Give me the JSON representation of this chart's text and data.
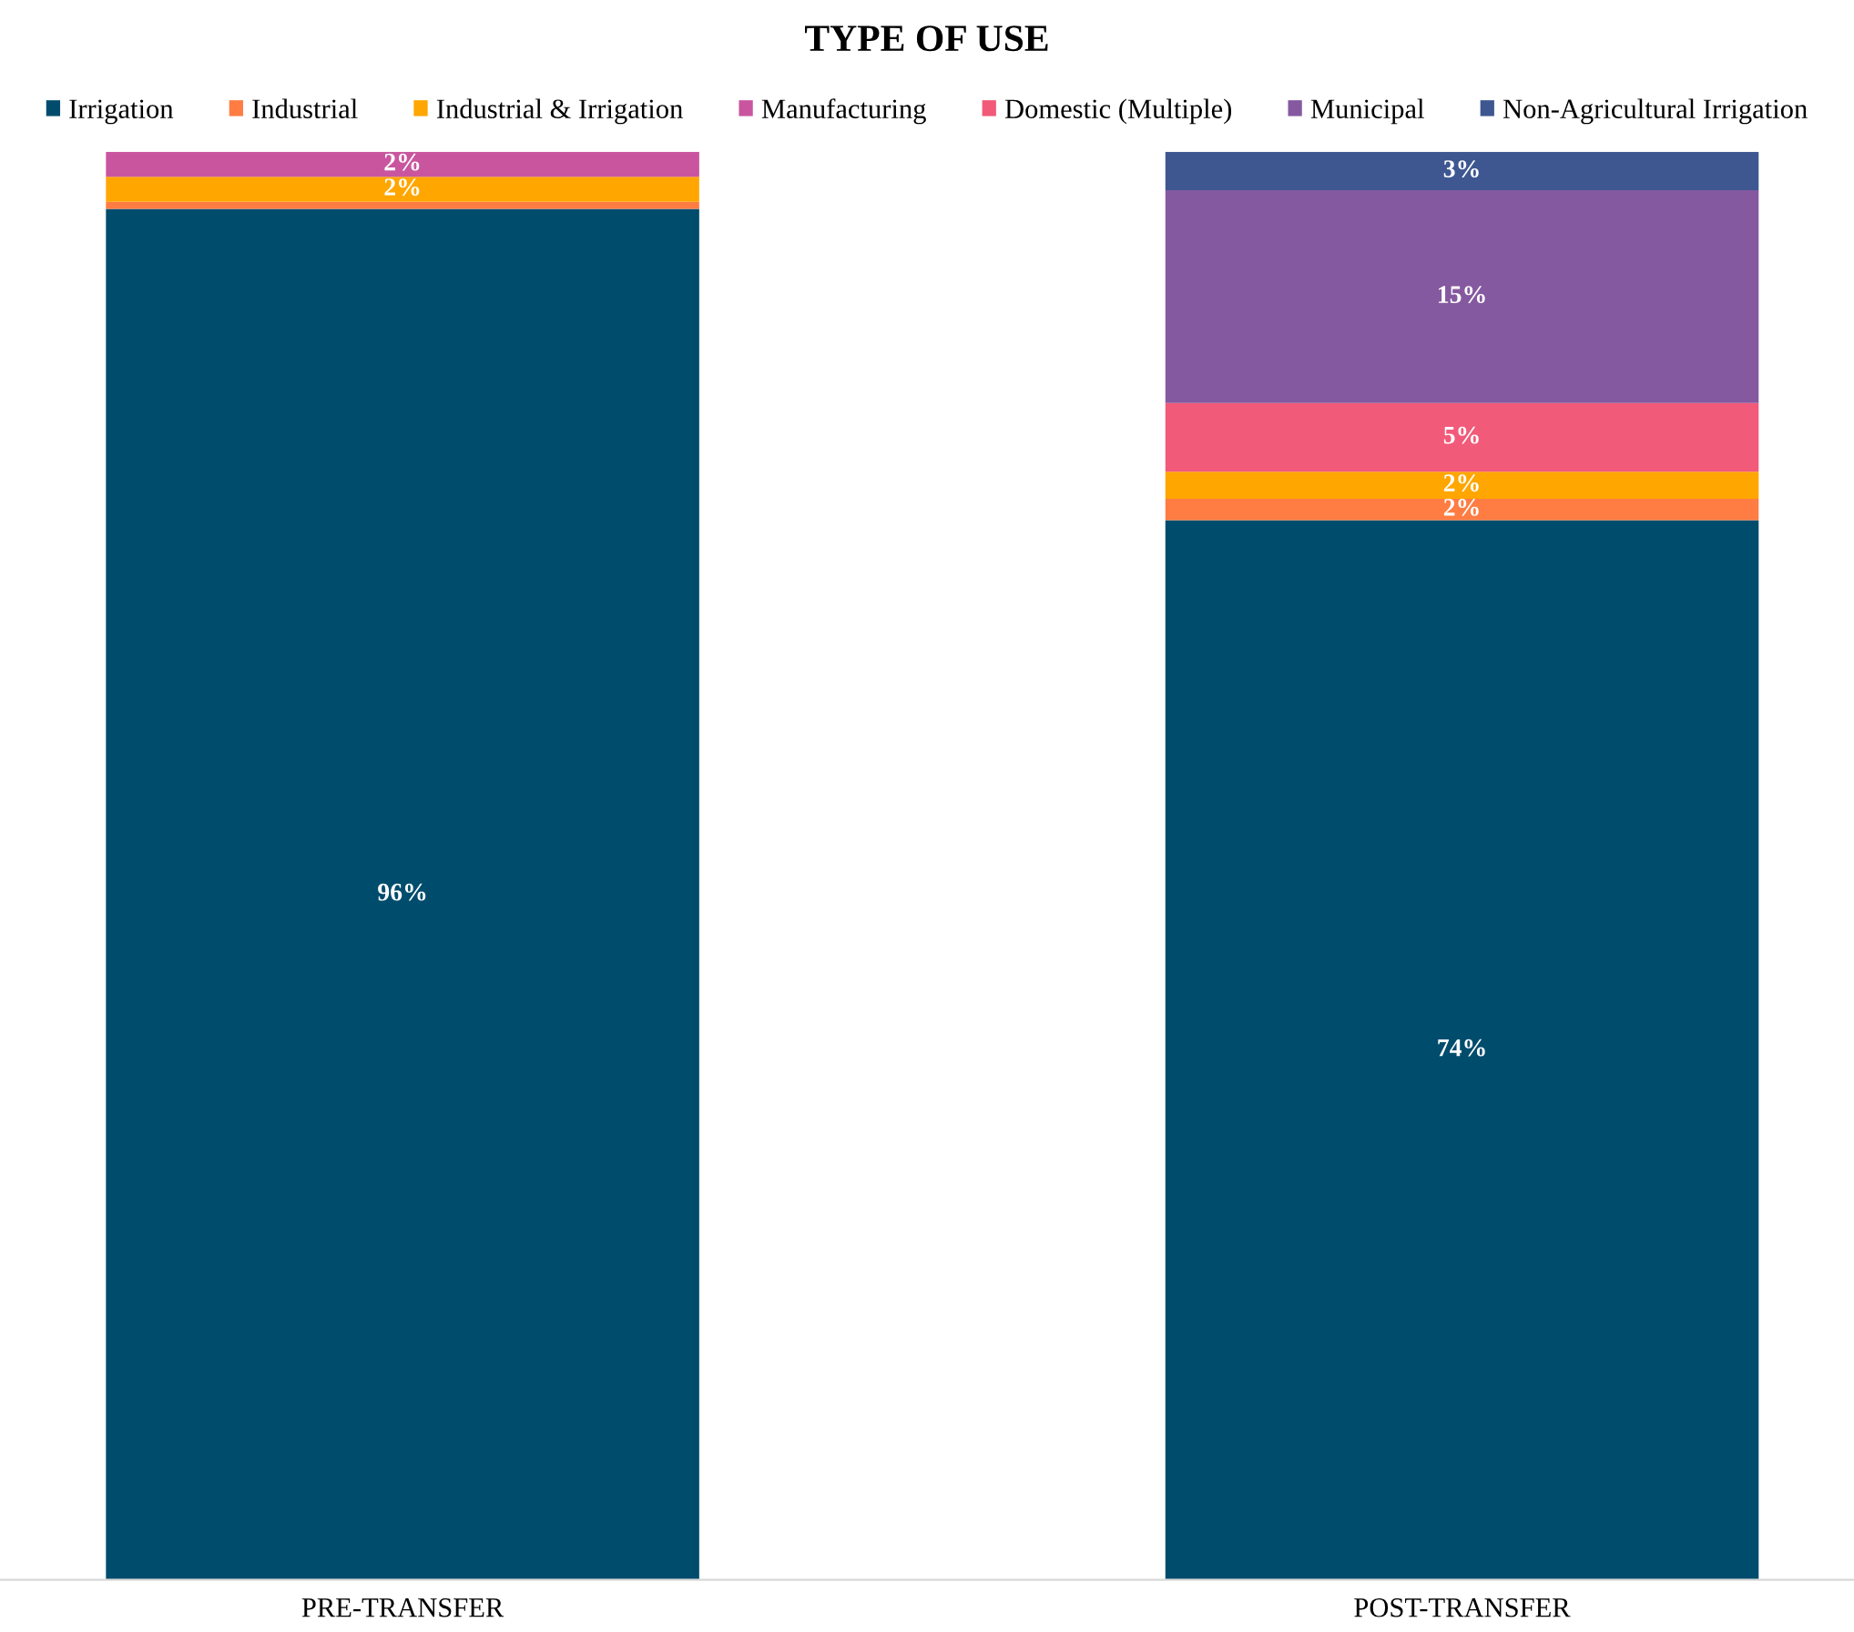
{
  "chart_data": {
    "type": "bar",
    "title": "TYPE OF USE",
    "stacked": true,
    "categories": [
      "PRE-TRANSFER",
      "POST-TRANSFER"
    ],
    "ylim": [
      0,
      100
    ],
    "tick_labels": "x",
    "grid": false,
    "legend": "top",
    "series": [
      {
        "name": "Irrigation",
        "color": "#004c6d",
        "values": [
          96,
          74.2
        ],
        "value_labels": [
          "96%",
          "74%"
        ]
      },
      {
        "name": "Industrial",
        "color": "#ff7c43",
        "values": [
          0.5,
          1.5
        ],
        "value_labels": [
          null,
          "2%"
        ]
      },
      {
        "name": "Industrial & Irrigation",
        "color": "#ffa600",
        "values": [
          1.75,
          1.9
        ],
        "value_labels": [
          "2%",
          "2%"
        ]
      },
      {
        "name": "Manufacturing",
        "color": "#c9559f",
        "values": [
          1.75,
          null
        ],
        "value_labels": [
          "2%",
          null
        ]
      },
      {
        "name": "Domestic (Multiple)",
        "color": "#f25a7a",
        "values": [
          null,
          4.8
        ],
        "value_labels": [
          null,
          "5%"
        ]
      },
      {
        "name": "Municipal",
        "color": "#8559a0",
        "values": [
          null,
          14.9
        ],
        "value_labels": [
          null,
          "15%"
        ]
      },
      {
        "name": "Non-Agricultural Irrigation",
        "color": "#3e5791",
        "values": [
          null,
          2.7
        ],
        "value_labels": [
          null,
          "3%"
        ]
      }
    ]
  }
}
